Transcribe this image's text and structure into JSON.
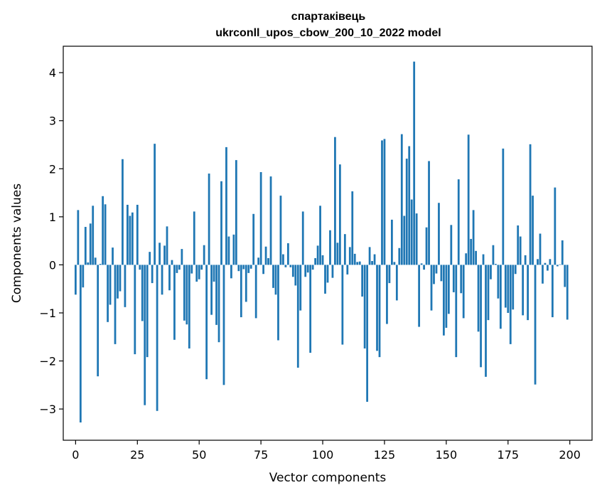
{
  "chart_data": {
    "type": "bar",
    "title": "спартаківець",
    "subtitle": "ukrconll_upos_cbow_200_10_2022 model",
    "xlabel": "Vector components",
    "ylabel": "Components values",
    "xlim": [
      -5,
      209
    ],
    "ylim": [
      -3.65,
      4.55
    ],
    "xticks": [
      0,
      25,
      50,
      75,
      100,
      125,
      150,
      175,
      200
    ],
    "xtick_labels": [
      "0",
      "25",
      "50",
      "75",
      "100",
      "125",
      "150",
      "175",
      "200"
    ],
    "yticks": [
      -3,
      -2,
      -1,
      0,
      1,
      2,
      3,
      4
    ],
    "ytick_labels": [
      "−3",
      "−2",
      "−1",
      "0",
      "1",
      "2",
      "3",
      "4"
    ],
    "grid": false,
    "color": "#1f77b4",
    "x": [
      0,
      1,
      2,
      3,
      4,
      5,
      6,
      7,
      8,
      9,
      10,
      11,
      12,
      13,
      14,
      15,
      16,
      17,
      18,
      19,
      20,
      21,
      22,
      23,
      24,
      25,
      26,
      27,
      28,
      29,
      30,
      31,
      32,
      33,
      34,
      35,
      36,
      37,
      38,
      39,
      40,
      41,
      42,
      43,
      44,
      45,
      46,
      47,
      48,
      49,
      50,
      51,
      52,
      53,
      54,
      55,
      56,
      57,
      58,
      59,
      60,
      61,
      62,
      63,
      64,
      65,
      66,
      67,
      68,
      69,
      70,
      71,
      72,
      73,
      74,
      75,
      76,
      77,
      78,
      79,
      80,
      81,
      82,
      83,
      84,
      85,
      86,
      87,
      88,
      89,
      90,
      91,
      92,
      93,
      94,
      95,
      96,
      97,
      98,
      99,
      100,
      101,
      102,
      103,
      104,
      105,
      106,
      107,
      108,
      109,
      110,
      111,
      112,
      113,
      114,
      115,
      116,
      117,
      118,
      119,
      120,
      121,
      122,
      123,
      124,
      125,
      126,
      127,
      128,
      129,
      130,
      131,
      132,
      133,
      134,
      135,
      136,
      137,
      138,
      139,
      140,
      141,
      142,
      143,
      144,
      145,
      146,
      147,
      148,
      149,
      150,
      151,
      152,
      153,
      154,
      155,
      156,
      157,
      158,
      159,
      160,
      161,
      162,
      163,
      164,
      165,
      166,
      167,
      168,
      169,
      170,
      171,
      172,
      173,
      174,
      175,
      176,
      177,
      178,
      179,
      180,
      181,
      182,
      183,
      184,
      185,
      186,
      187,
      188,
      189,
      190,
      191,
      192,
      193,
      194,
      195,
      196,
      197,
      198,
      199
    ],
    "values": [
      -0.62,
      1.14,
      -3.28,
      -0.47,
      0.79,
      0.05,
      0.86,
      1.23,
      0.15,
      -2.32,
      0.02,
      1.43,
      1.26,
      -1.19,
      -0.83,
      0.36,
      -1.65,
      -0.7,
      -0.55,
      2.2,
      -0.88,
      1.25,
      1.02,
      1.09,
      -1.86,
      1.25,
      -0.1,
      -1.17,
      -2.92,
      -1.92,
      0.27,
      -0.38,
      2.52,
      -3.04,
      0.46,
      -0.62,
      0.4,
      0.8,
      -0.53,
      0.1,
      -1.56,
      -0.17,
      -0.1,
      0.33,
      -1.16,
      -1.24,
      -1.74,
      -0.18,
      1.11,
      -0.35,
      -0.3,
      -0.1,
      0.41,
      -2.38,
      1.9,
      -1.04,
      -0.35,
      -1.25,
      -1.61,
      1.74,
      -2.5,
      2.45,
      0.59,
      -0.28,
      0.63,
      2.18,
      -0.13,
      -1.09,
      -0.09,
      -0.77,
      -0.17,
      -0.08,
      1.06,
      -1.11,
      0.15,
      1.93,
      -0.19,
      0.38,
      0.14,
      1.84,
      -0.48,
      -0.62,
      -1.57,
      1.44,
      0.22,
      -0.05,
      0.45,
      -0.05,
      -0.25,
      -0.43,
      -2.14,
      -0.95,
      1.11,
      -0.25,
      -0.16,
      -1.83,
      -0.1,
      0.14,
      0.4,
      1.23,
      0.2,
      -0.6,
      -0.37,
      0.72,
      -0.27,
      2.66,
      0.46,
      2.09,
      -1.66,
      0.64,
      -0.2,
      0.37,
      1.53,
      0.23,
      0.06,
      0.07,
      -0.66,
      -1.74,
      -2.85,
      0.37,
      0.08,
      0.22,
      -1.79,
      -1.92,
      2.59,
      2.62,
      -1.23,
      -0.38,
      0.94,
      0.06,
      -0.74,
      0.35,
      2.72,
      1.02,
      2.21,
      2.47,
      1.36,
      4.23,
      1.07,
      -1.29,
      0.03,
      -0.1,
      0.78,
      2.16,
      -0.95,
      -0.4,
      -0.18,
      1.29,
      -0.34,
      -1.47,
      -1.31,
      -1.02,
      0.83,
      -0.57,
      -1.92,
      1.78,
      -0.59,
      -1.11,
      0.24,
      2.71,
      0.54,
      1.14,
      0.29,
      -1.39,
      -2.13,
      0.22,
      -2.33,
      -1.15,
      -0.3,
      0.41,
      0.02,
      -0.7,
      -1.33,
      2.42,
      -0.89,
      -1.0,
      -1.65,
      -0.93,
      -0.19,
      0.82,
      0.59,
      -1.05,
      0.2,
      -1.15,
      2.51,
      1.44,
      -2.49,
      0.12,
      0.65,
      -0.39,
      0.04,
      -0.12,
      0.12,
      -1.09,
      1.61,
      -0.03,
      0.01,
      0.51,
      -0.46,
      -1.14
    ]
  }
}
